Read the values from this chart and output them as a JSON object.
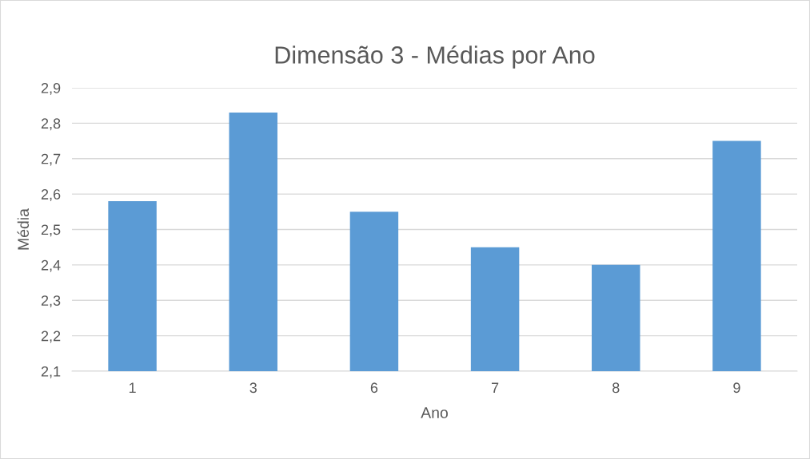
{
  "chart_data": {
    "type": "bar",
    "title": "Dimensão 3 - Médias por Ano",
    "xlabel": "Ano",
    "ylabel": "Média",
    "categories": [
      "1",
      "3",
      "6",
      "7",
      "8",
      "9"
    ],
    "values": [
      2.58,
      2.83,
      2.55,
      2.45,
      2.4,
      2.75
    ],
    "color": "#5b9bd5",
    "ylim": [
      2.1,
      2.9
    ],
    "yticks": [
      {
        "value": 2.1,
        "label": "2,1"
      },
      {
        "value": 2.2,
        "label": "2,2"
      },
      {
        "value": 2.3,
        "label": "2,3"
      },
      {
        "value": 2.4,
        "label": "2,4"
      },
      {
        "value": 2.5,
        "label": "2,5"
      },
      {
        "value": 2.6,
        "label": "2,6"
      },
      {
        "value": 2.7,
        "label": "2,7"
      },
      {
        "value": 2.8,
        "label": "2,8"
      },
      {
        "value": 2.9,
        "label": "2,9"
      }
    ],
    "grid": "y"
  }
}
